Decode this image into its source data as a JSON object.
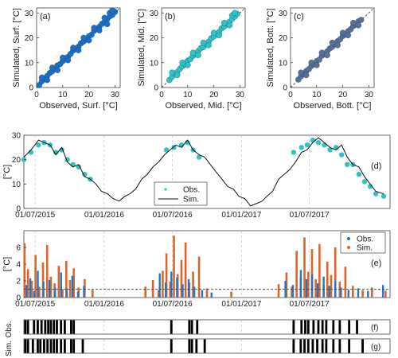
{
  "chart_data": [
    {
      "id": "a",
      "type": "scatter",
      "panel_label": "(a)",
      "xlabel": "Observed, Surf. [°C]",
      "ylabel": "Simulated, Surf. [°C]",
      "xlim": [
        0,
        32
      ],
      "ylim": [
        0,
        32
      ],
      "xticks": [
        0,
        10,
        20,
        30
      ],
      "yticks": [
        0,
        10,
        20,
        30
      ],
      "color": "#1a6fc7",
      "reference_line": "1:1 dashed",
      "points": [
        [
          1,
          1
        ],
        [
          2,
          2.5
        ],
        [
          3,
          3.4
        ],
        [
          4,
          4.6
        ],
        [
          5,
          5.8
        ],
        [
          6,
          6.5
        ],
        [
          7,
          7.6
        ],
        [
          8,
          8.9
        ],
        [
          9,
          9.4
        ],
        [
          10,
          10.6
        ],
        [
          11,
          11.8
        ],
        [
          12,
          12.3
        ],
        [
          13,
          13.5
        ],
        [
          14,
          14.9
        ],
        [
          15,
          15.6
        ],
        [
          16,
          16.4
        ],
        [
          17,
          17.8
        ],
        [
          18,
          18.5
        ],
        [
          19,
          19.3
        ],
        [
          20,
          20.6
        ],
        [
          21,
          21.2
        ],
        [
          22,
          22.8
        ],
        [
          23,
          23.5
        ],
        [
          24,
          24.4
        ],
        [
          25,
          25.6
        ],
        [
          26,
          26.3
        ],
        [
          27,
          27.5
        ],
        [
          28,
          28.6
        ],
        [
          29,
          29.2
        ],
        [
          30,
          30.4
        ],
        [
          2,
          4
        ],
        [
          4,
          3
        ],
        [
          6,
          8
        ],
        [
          8,
          7
        ],
        [
          10,
          12
        ],
        [
          12,
          11
        ],
        [
          14,
          16
        ],
        [
          16,
          15
        ],
        [
          18,
          20
        ],
        [
          20,
          19
        ],
        [
          22,
          24
        ],
        [
          24,
          23
        ],
        [
          26,
          28
        ],
        [
          27,
          25.5
        ],
        [
          28,
          30
        ],
        [
          29,
          31
        ]
      ]
    },
    {
      "id": "b",
      "type": "scatter",
      "panel_label": "(b)",
      "xlabel": "Observed, Mid. [°C]",
      "ylabel": "Simulated, Mid. [°C]",
      "xlim": [
        0,
        32
      ],
      "ylim": [
        0,
        32
      ],
      "xticks": [
        0,
        10,
        20,
        30
      ],
      "yticks": [
        0,
        10,
        20,
        30
      ],
      "color": "#2ec4c4",
      "reference_line": "1:1 dashed",
      "points": [
        [
          3,
          3
        ],
        [
          4,
          4.3
        ],
        [
          5,
          5.6
        ],
        [
          6,
          6.2
        ],
        [
          7,
          7.5
        ],
        [
          8,
          8.6
        ],
        [
          9,
          9.3
        ],
        [
          10,
          10.8
        ],
        [
          11,
          11.4
        ],
        [
          12,
          12.7
        ],
        [
          13,
          13.3
        ],
        [
          14,
          14.6
        ],
        [
          15,
          15.8
        ],
        [
          16,
          16.3
        ],
        [
          17,
          17.6
        ],
        [
          18,
          18.4
        ],
        [
          19,
          19.8
        ],
        [
          20,
          20.5
        ],
        [
          21,
          21.6
        ],
        [
          22,
          22.3
        ],
        [
          23,
          23.8
        ],
        [
          24,
          24.5
        ],
        [
          25,
          25.7
        ],
        [
          26,
          26.4
        ],
        [
          27,
          27.6
        ],
        [
          28,
          28.5
        ],
        [
          29,
          29.6
        ],
        [
          4,
          6
        ],
        [
          6,
          5
        ],
        [
          8,
          10
        ],
        [
          10,
          9
        ],
        [
          12,
          14
        ],
        [
          14,
          13
        ],
        [
          16,
          18
        ],
        [
          18,
          17
        ],
        [
          20,
          22
        ],
        [
          22,
          21
        ],
        [
          24,
          26
        ],
        [
          26,
          25
        ],
        [
          27,
          29
        ],
        [
          28,
          30
        ]
      ]
    },
    {
      "id": "c",
      "type": "scatter",
      "panel_label": "(c)",
      "xlabel": "Observed, Bott. [°C]",
      "ylabel": "Simulated, Bott. [°C]",
      "xlim": [
        0,
        32
      ],
      "ylim": [
        0,
        32
      ],
      "xticks": [
        0,
        10,
        20,
        30
      ],
      "yticks": [
        0,
        10,
        20,
        30
      ],
      "color": "#5a6f96",
      "reference_line": "1:1 dashed",
      "points": [
        [
          3,
          3.2
        ],
        [
          4,
          4.5
        ],
        [
          5,
          5.3
        ],
        [
          6,
          6.6
        ],
        [
          7,
          7.4
        ],
        [
          8,
          8.7
        ],
        [
          9,
          9.5
        ],
        [
          10,
          10.6
        ],
        [
          11,
          11.2
        ],
        [
          12,
          12.8
        ],
        [
          13,
          13.4
        ],
        [
          14,
          14.5
        ],
        [
          15,
          15.7
        ],
        [
          16,
          16.4
        ],
        [
          17,
          17.5
        ],
        [
          18,
          18.6
        ],
        [
          19,
          19.4
        ],
        [
          20,
          20.7
        ],
        [
          21,
          21.3
        ],
        [
          22,
          22.6
        ],
        [
          23,
          23.4
        ],
        [
          24,
          24.7
        ],
        [
          25,
          25.3
        ],
        [
          26,
          26.6
        ],
        [
          27,
          27.2
        ],
        [
          4,
          6
        ],
        [
          6,
          5
        ],
        [
          8,
          10
        ],
        [
          10,
          9
        ],
        [
          12,
          14
        ],
        [
          14,
          13
        ],
        [
          16,
          18
        ],
        [
          18,
          17
        ],
        [
          20,
          22
        ],
        [
          22,
          21
        ],
        [
          24,
          26
        ],
        [
          26,
          25
        ]
      ]
    },
    {
      "id": "d",
      "type": "line",
      "panel_label": "(d)",
      "ylabel": "[°C]",
      "ylim": [
        0,
        30
      ],
      "yticks": [
        0,
        10,
        20,
        30
      ],
      "xlim": [
        "2015-06-01",
        "2018-02-01"
      ],
      "xtick_labels": [
        "01/07/2015",
        "01/01/2016",
        "01/07/2016",
        "01/01/2017",
        "01/07/2017"
      ],
      "xtick_dates": [
        "2015-07-01",
        "2016-01-01",
        "2016-07-01",
        "2017-01-01",
        "2017-07-01"
      ],
      "legend_position": "center",
      "series": [
        {
          "name": "Obs.",
          "color": "#2ec4c4",
          "marker": "dot",
          "x": [
            "2015-06-01",
            "2015-06-20",
            "2015-07-10",
            "2015-07-25",
            "2015-08-10",
            "2015-08-25",
            "2015-09-10",
            "2015-09-25",
            "2015-10-10",
            "2015-10-25",
            "2015-11-10",
            "2015-11-25",
            "2016-06-15",
            "2016-07-05",
            "2016-07-25",
            "2016-08-10",
            "2016-08-25",
            "2016-09-10",
            "2017-05-20",
            "2017-06-10",
            "2017-06-25",
            "2017-07-10",
            "2017-07-25",
            "2017-08-10",
            "2017-08-25",
            "2017-09-10",
            "2017-09-25",
            "2017-10-10",
            "2017-10-25",
            "2017-11-10",
            "2017-11-25",
            "2017-12-10",
            "2017-12-25",
            "2018-01-15"
          ],
          "y": [
            20,
            23,
            26,
            27,
            26,
            23,
            24,
            20,
            18,
            17,
            14,
            12,
            24,
            25,
            26,
            27,
            24,
            21,
            23,
            25,
            26,
            28,
            27,
            26,
            24,
            25,
            22,
            18,
            18,
            14,
            11,
            9,
            6,
            5
          ]
        },
        {
          "name": "Sim.",
          "color": "#111111",
          "x": [
            "2015-06-01",
            "2015-06-20",
            "2015-07-10",
            "2015-07-25",
            "2015-08-10",
            "2015-08-25",
            "2015-09-10",
            "2015-09-25",
            "2015-10-10",
            "2015-10-25",
            "2015-11-10",
            "2015-11-25",
            "2015-12-10",
            "2015-12-25",
            "2016-01-10",
            "2016-01-25",
            "2016-02-10",
            "2016-02-25",
            "2016-03-10",
            "2016-03-25",
            "2016-04-10",
            "2016-04-25",
            "2016-05-10",
            "2016-05-25",
            "2016-06-10",
            "2016-06-25",
            "2016-07-10",
            "2016-07-25",
            "2016-08-10",
            "2016-08-25",
            "2016-09-10",
            "2016-09-25",
            "2016-10-10",
            "2016-10-25",
            "2016-11-10",
            "2016-11-25",
            "2016-12-10",
            "2016-12-25",
            "2017-01-10",
            "2017-01-25",
            "2017-02-10",
            "2017-02-25",
            "2017-03-10",
            "2017-03-25",
            "2017-04-10",
            "2017-04-25",
            "2017-05-10",
            "2017-05-25",
            "2017-06-10",
            "2017-06-25",
            "2017-07-10",
            "2017-07-25",
            "2017-08-10",
            "2017-08-25",
            "2017-09-10",
            "2017-09-25",
            "2017-10-10",
            "2017-10-25",
            "2017-11-10",
            "2017-11-25",
            "2017-12-10",
            "2017-12-25",
            "2018-01-15"
          ],
          "y": [
            21,
            24,
            28,
            27,
            26,
            22,
            25,
            19,
            17,
            18,
            13,
            12,
            10,
            7,
            6,
            4,
            3,
            5,
            6,
            8,
            12,
            14,
            17,
            19,
            22,
            24,
            26,
            25,
            28,
            24,
            22,
            21,
            18,
            15,
            12,
            9,
            8,
            5,
            4,
            1,
            2,
            3,
            5,
            7,
            12,
            14,
            16,
            19,
            23,
            24,
            27,
            29,
            27,
            25,
            24,
            26,
            21,
            18,
            17,
            13,
            10,
            7,
            6
          ]
        }
      ]
    },
    {
      "id": "e",
      "type": "scatter",
      "panel_label": "(e)",
      "ylabel": "[°C]",
      "ylim": [
        0,
        8
      ],
      "yticks": [
        0,
        2,
        4,
        6
      ],
      "xlim": [
        "2015-06-01",
        "2018-02-01"
      ],
      "xtick_labels": [
        "01/07/2015",
        "01/01/2016",
        "01/07/2016",
        "01/01/2017",
        "01/07/2017"
      ],
      "xtick_dates": [
        "2015-07-01",
        "2016-01-01",
        "2016-07-01",
        "2017-01-01",
        "2017-07-01"
      ],
      "threshold": 1,
      "legend_position": "top-right",
      "series": [
        {
          "name": "Obs.",
          "color": "#1f78c4",
          "x": [
            "2015-06-05",
            "2015-06-15",
            "2015-06-25",
            "2015-07-05",
            "2015-07-20",
            "2015-08-05",
            "2015-08-20",
            "2015-09-05",
            "2015-09-20",
            "2015-10-05",
            "2015-10-20",
            "2015-11-05",
            "2016-05-25",
            "2016-06-10",
            "2016-06-25",
            "2016-07-10",
            "2016-07-25",
            "2016-08-10",
            "2016-08-25",
            "2016-09-15",
            "2016-10-10",
            "2017-04-25",
            "2017-05-15",
            "2017-06-05",
            "2017-06-20",
            "2017-07-05",
            "2017-07-20",
            "2017-08-05",
            "2017-08-20",
            "2017-09-05",
            "2017-09-20",
            "2017-10-10",
            "2017-11-05",
            "2017-12-01",
            "2018-01-10"
          ],
          "y": [
            1.5,
            2.3,
            0.8,
            3.2,
            1.9,
            2.1,
            1.2,
            3.0,
            1.1,
            2.6,
            0.7,
            1.4,
            2.9,
            1.8,
            3.1,
            2.4,
            1.6,
            2.2,
            1.3,
            0.9,
            0.6,
            2.0,
            1.5,
            3.3,
            2.2,
            2.8,
            1.7,
            2.5,
            1.4,
            2.0,
            1.2,
            0.9,
            1.1,
            0.8,
            1.5
          ]
        },
        {
          "name": "Sim.",
          "color": "#e0642a",
          "x": [
            "2015-06-03",
            "2015-06-12",
            "2015-06-22",
            "2015-07-02",
            "2015-07-12",
            "2015-07-22",
            "2015-08-02",
            "2015-08-12",
            "2015-08-22",
            "2015-09-02",
            "2015-09-12",
            "2015-09-22",
            "2015-10-02",
            "2015-10-12",
            "2015-10-25",
            "2015-11-10",
            "2015-12-01",
            "2016-04-20",
            "2016-05-10",
            "2016-05-25",
            "2016-06-05",
            "2016-06-15",
            "2016-06-25",
            "2016-07-05",
            "2016-07-15",
            "2016-07-25",
            "2016-08-05",
            "2016-08-15",
            "2016-08-25",
            "2016-09-10",
            "2016-10-01",
            "2016-12-05",
            "2017-04-10",
            "2017-05-01",
            "2017-05-15",
            "2017-05-28",
            "2017-06-08",
            "2017-06-18",
            "2017-06-28",
            "2017-07-08",
            "2017-07-18",
            "2017-07-28",
            "2017-08-08",
            "2017-08-18",
            "2017-08-28",
            "2017-09-08",
            "2017-09-20",
            "2017-10-05",
            "2017-10-25",
            "2017-11-20",
            "2017-12-15",
            "2018-01-20"
          ],
          "y": [
            6.5,
            3.4,
            2.0,
            5.1,
            1.3,
            4.2,
            6.3,
            2.5,
            1.7,
            3.8,
            1.0,
            4.4,
            2.1,
            3.5,
            1.2,
            2.2,
            0.9,
            1.3,
            2.1,
            0.9,
            3.2,
            5.3,
            1.9,
            7.4,
            2.8,
            4.5,
            6.6,
            1.8,
            3.1,
            4.9,
            1.1,
            0.7,
            1.6,
            3.0,
            1.3,
            5.6,
            2.4,
            7.2,
            3.1,
            5.8,
            2.2,
            6.4,
            1.5,
            4.3,
            2.7,
            6.0,
            1.9,
            3.7,
            1.4,
            0.9,
            1.2,
            0.8
          ]
        }
      ]
    },
    {
      "id": "f",
      "type": "table",
      "panel_label": "(f)",
      "ylabel": "Obs.",
      "xlim": [
        "2015-06-01",
        "2018-02-01"
      ],
      "bars": [
        "2015-06-05",
        "2015-06-12",
        "2015-06-28",
        "2015-07-08",
        "2015-07-18",
        "2015-07-28",
        "2015-08-05",
        "2015-08-12",
        "2015-08-20",
        "2015-08-28",
        "2015-09-08",
        "2015-09-18",
        "2015-10-05",
        "2015-10-12",
        "2016-06-28",
        "2016-08-15",
        "2016-08-22",
        "2016-09-05",
        "2017-05-20",
        "2017-06-10",
        "2017-06-20",
        "2017-06-28",
        "2017-07-12",
        "2017-07-25",
        "2017-08-05",
        "2017-08-15",
        "2017-09-03",
        "2017-09-20",
        "2017-10-15",
        "2017-11-05"
      ]
    },
    {
      "id": "g",
      "type": "table",
      "panel_label": "(g)",
      "ylabel": "Sim.",
      "xlim": [
        "2015-06-01",
        "2018-02-01"
      ],
      "bars": [
        "2015-06-05",
        "2015-06-12",
        "2015-06-25",
        "2015-07-08",
        "2015-07-15",
        "2015-07-25",
        "2015-08-03",
        "2015-08-12",
        "2015-08-20",
        "2015-08-28",
        "2015-09-08",
        "2015-09-18",
        "2015-10-05",
        "2015-10-12",
        "2015-11-05",
        "2016-06-28",
        "2016-08-15",
        "2016-08-22",
        "2016-09-03",
        "2016-09-25",
        "2017-05-20",
        "2017-06-08",
        "2017-06-18",
        "2017-06-28",
        "2017-07-10",
        "2017-07-22",
        "2017-08-05",
        "2017-08-15",
        "2017-09-03",
        "2017-09-20",
        "2017-10-15",
        "2017-11-20"
      ]
    }
  ]
}
